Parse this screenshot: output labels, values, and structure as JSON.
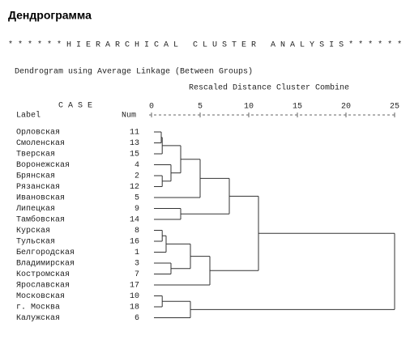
{
  "chart_data": {
    "type": "dendrogram",
    "title": "Дендрограмма",
    "banner": "* * * * * * H I E R A R C H I C A L   C L U S T E R   A N A L Y S I S * * * * * *",
    "subtitle": "Dendrogram using Average Linkage (Between Groups)",
    "x_label": "Rescaled Distance Cluster Combine",
    "case_header": "C A S E",
    "label_header": "Label",
    "num_header": "Num",
    "xlim": [
      0,
      25
    ],
    "xticks": [
      0,
      5,
      10,
      15,
      20,
      25
    ],
    "labels": [
      "Орловская",
      "Смоленская",
      "Тверская",
      "Воронежская",
      "Брянская",
      "Рязанская",
      "Ивановская",
      "Липецкая",
      "Тамбовская",
      "Курская",
      "Тульская",
      "Белгородская",
      "Владимирская",
      "Костромская",
      "Ярославская",
      "Московская",
      "г. Москва",
      "Калужская"
    ],
    "nums": [
      11,
      13,
      15,
      4,
      2,
      12,
      5,
      9,
      14,
      8,
      16,
      1,
      3,
      7,
      17,
      10,
      18,
      6
    ],
    "merges": [
      [
        0,
        1,
        1.0
      ],
      [
        18,
        2,
        1.1
      ],
      [
        4,
        5,
        1.1
      ],
      [
        3,
        20,
        2.0
      ],
      [
        19,
        21,
        3.0
      ],
      [
        22,
        6,
        5.0
      ],
      [
        7,
        8,
        3.0
      ],
      [
        23,
        24,
        8.0
      ],
      [
        9,
        10,
        1.1
      ],
      [
        26,
        11,
        1.5
      ],
      [
        12,
        13,
        2.0
      ],
      [
        27,
        28,
        4.0
      ],
      [
        29,
        14,
        6.0
      ],
      [
        15,
        16,
        1.1
      ],
      [
        31,
        17,
        4.0
      ],
      [
        25,
        30,
        11.0
      ],
      [
        33,
        32,
        25.0
      ]
    ]
  }
}
